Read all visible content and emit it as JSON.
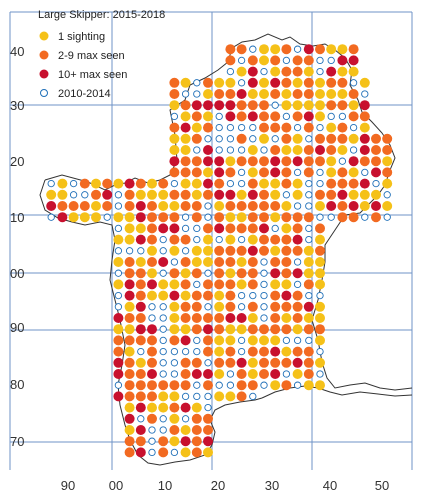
{
  "map": {
    "title": "Large Skipper:  2015-2018",
    "legend": [
      {
        "label": "1 sighting",
        "style": "filled",
        "color": "#f5c118"
      },
      {
        "label": "2-9 max seen",
        "style": "filled",
        "color": "#f26a21"
      },
      {
        "label": "10+ max seen",
        "style": "filled",
        "color": "#c8102e"
      },
      {
        "label": "2010-2014",
        "style": "open",
        "color": "#1f6fb8"
      }
    ],
    "grid_line_color": "#6f93c7",
    "outline_color": "#333333",
    "x_ticks": [
      "90",
      "00",
      "10",
      "20",
      "30",
      "40",
      "50"
    ],
    "y_ticks": [
      "40",
      "30",
      "20",
      "10",
      "00",
      "90",
      "80",
      "70"
    ]
  }
}
